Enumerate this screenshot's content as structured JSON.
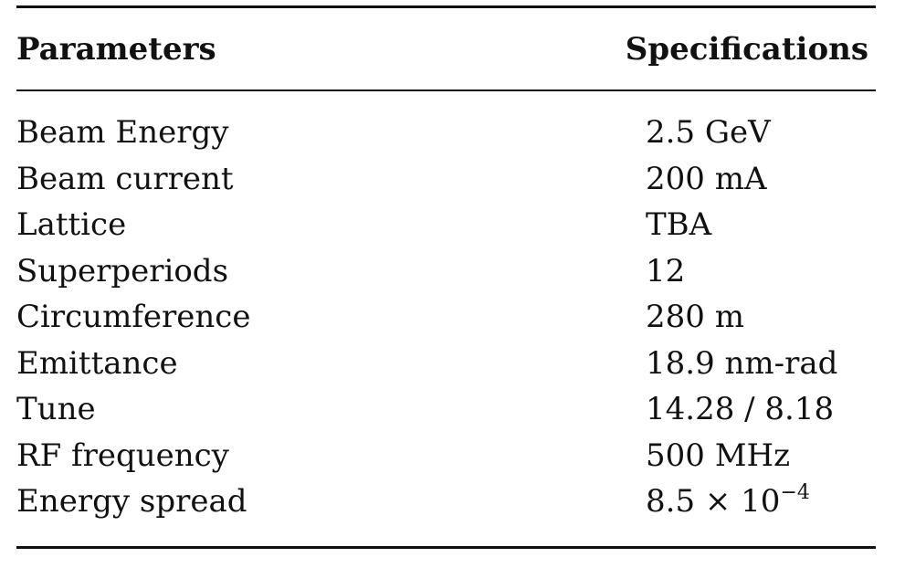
{
  "table": {
    "header": {
      "parameters": "Parameters",
      "specifications": "Specifications"
    },
    "rows": [
      {
        "parameter": "Beam Energy",
        "spec": "2.5 GeV"
      },
      {
        "parameter": "Beam current",
        "spec": "200 mA"
      },
      {
        "parameter": "Lattice",
        "spec": "TBA"
      },
      {
        "parameter": "Superperiods",
        "spec": "12"
      },
      {
        "parameter": "Circumference",
        "spec": "280 m"
      },
      {
        "parameter": "Emittance",
        "spec": "18.9 nm-rad"
      },
      {
        "parameter": "Tune",
        "spec": "14.28 / 8.18"
      },
      {
        "parameter": "RF frequency",
        "spec": "500 MHz"
      },
      {
        "parameter": "Energy spread",
        "spec_base": "8.5 × 10",
        "spec_exp": "−4"
      }
    ]
  }
}
